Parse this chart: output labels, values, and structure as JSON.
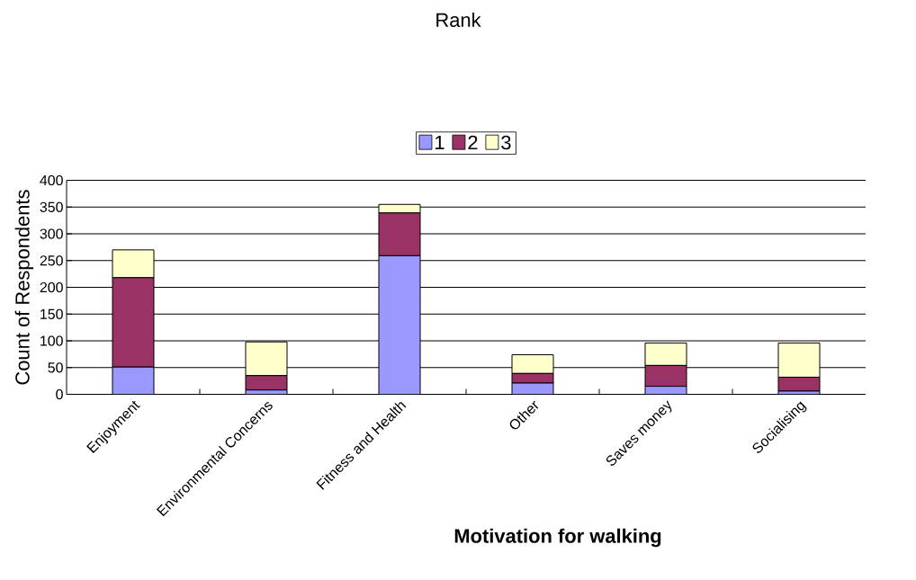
{
  "chart_data": {
    "type": "bar",
    "stacked": true,
    "legend_title": "Rank",
    "legend": "top",
    "xlabel": "Motivation for walking",
    "ylabel": "Count of Respondents",
    "categories": [
      "Enjoyment",
      "Environmental  Concerns",
      "Fitness and Health",
      "Other",
      "Saves money",
      "Socialising"
    ],
    "series": [
      {
        "name": "1",
        "color": "#9999ff",
        "values": [
          51,
          8,
          259,
          21,
          15,
          6
        ]
      },
      {
        "name": "2",
        "color": "#993366",
        "values": [
          167,
          27,
          80,
          18,
          39,
          26
        ]
      },
      {
        "name": "3",
        "color": "#ffffcc",
        "values": [
          52,
          63,
          16,
          35,
          42,
          64
        ]
      }
    ],
    "ylim": [
      0,
      400
    ],
    "yticks": [
      0,
      50,
      100,
      150,
      200,
      250,
      300,
      350,
      400
    ],
    "grid": "y"
  }
}
